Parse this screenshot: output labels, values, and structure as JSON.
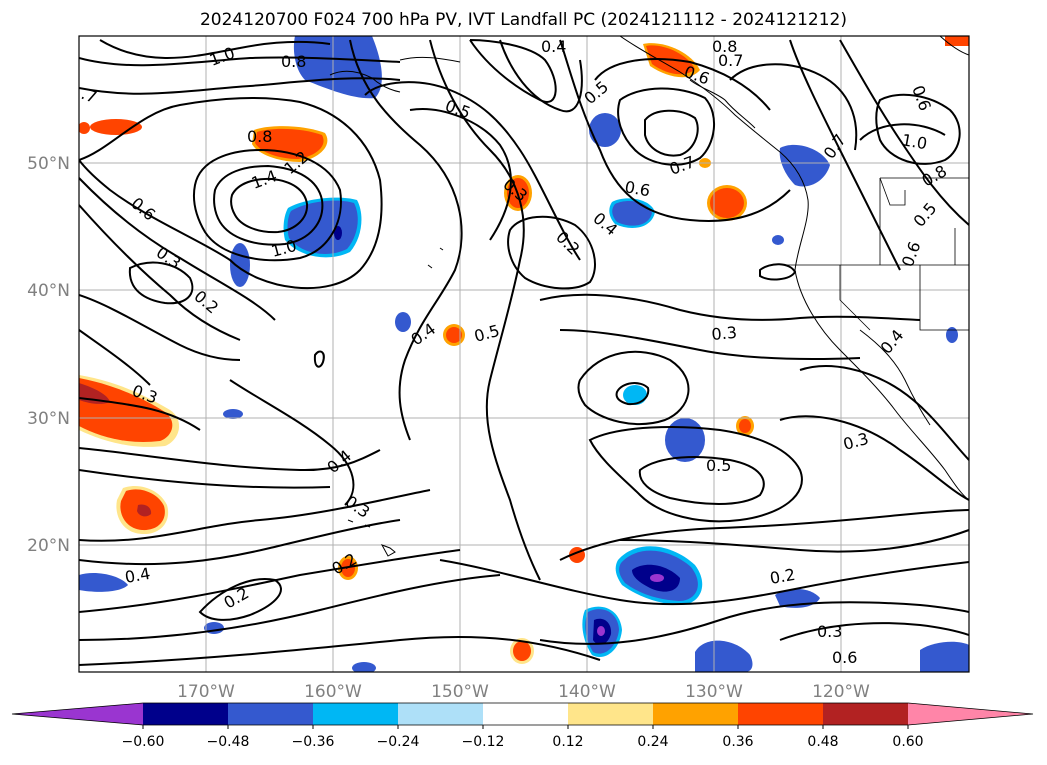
{
  "title": "2024120700 F024 700 hPa PV, IVT Landfall PC (2024121112 - 2024121212)",
  "axes": {
    "lat_ticks": [
      "50°N",
      "40°N",
      "30°N",
      "20°N"
    ],
    "lon_ticks": [
      "170°W",
      "160°W",
      "150°W",
      "140°W",
      "130°W",
      "120°W"
    ]
  },
  "colorbar": {
    "colors": [
      "#9a35d0",
      "#00008b",
      "#3459cf",
      "#00b7f4",
      "#aee0f8",
      "#ffffff",
      "#ffe58a",
      "#ffa200",
      "#ff4400",
      "#b22222",
      "#ff85a8"
    ],
    "labels": [
      "−0.60",
      "−0.48",
      "−0.36",
      "−0.24",
      "−0.12",
      "0.12",
      "0.24",
      "0.36",
      "0.48",
      "0.60"
    ]
  },
  "contour_labels": [
    {
      "text": "1.0"
    },
    {
      "text": "0.8"
    },
    {
      "text": "0.4"
    },
    {
      "text": "0.8"
    },
    {
      "text": "0.7"
    },
    {
      "text": "0.6"
    },
    {
      "text": ".7"
    },
    {
      "text": "0.8"
    },
    {
      "text": "0.5"
    },
    {
      "text": "0.5"
    },
    {
      "text": "0.6"
    },
    {
      "text": "1.0"
    },
    {
      "text": "1.4"
    },
    {
      "text": "1.2"
    },
    {
      "text": "0.6"
    },
    {
      "text": "0.3"
    },
    {
      "text": "1.0"
    },
    {
      "text": "0.3"
    },
    {
      "text": "0.2"
    },
    {
      "text": "0.7"
    },
    {
      "text": "0.6"
    },
    {
      "text": "0.2"
    },
    {
      "text": "0.4"
    },
    {
      "text": "0.7"
    },
    {
      "text": "0.8"
    },
    {
      "text": "0.5"
    },
    {
      "text": "0.6"
    },
    {
      "text": "0.4"
    },
    {
      "text": "0.5"
    },
    {
      "text": "0.3"
    },
    {
      "text": "0.4"
    },
    {
      "text": "0.3"
    },
    {
      "text": "0.3"
    },
    {
      "text": "0.4"
    },
    {
      "text": "0.5"
    },
    {
      "text": "0.3"
    },
    {
      "text": "0.2"
    },
    {
      "text": "0.4"
    },
    {
      "text": "0.2"
    },
    {
      "text": "0.2"
    },
    {
      "text": "0.3"
    },
    {
      "text": "0.6"
    }
  ]
}
